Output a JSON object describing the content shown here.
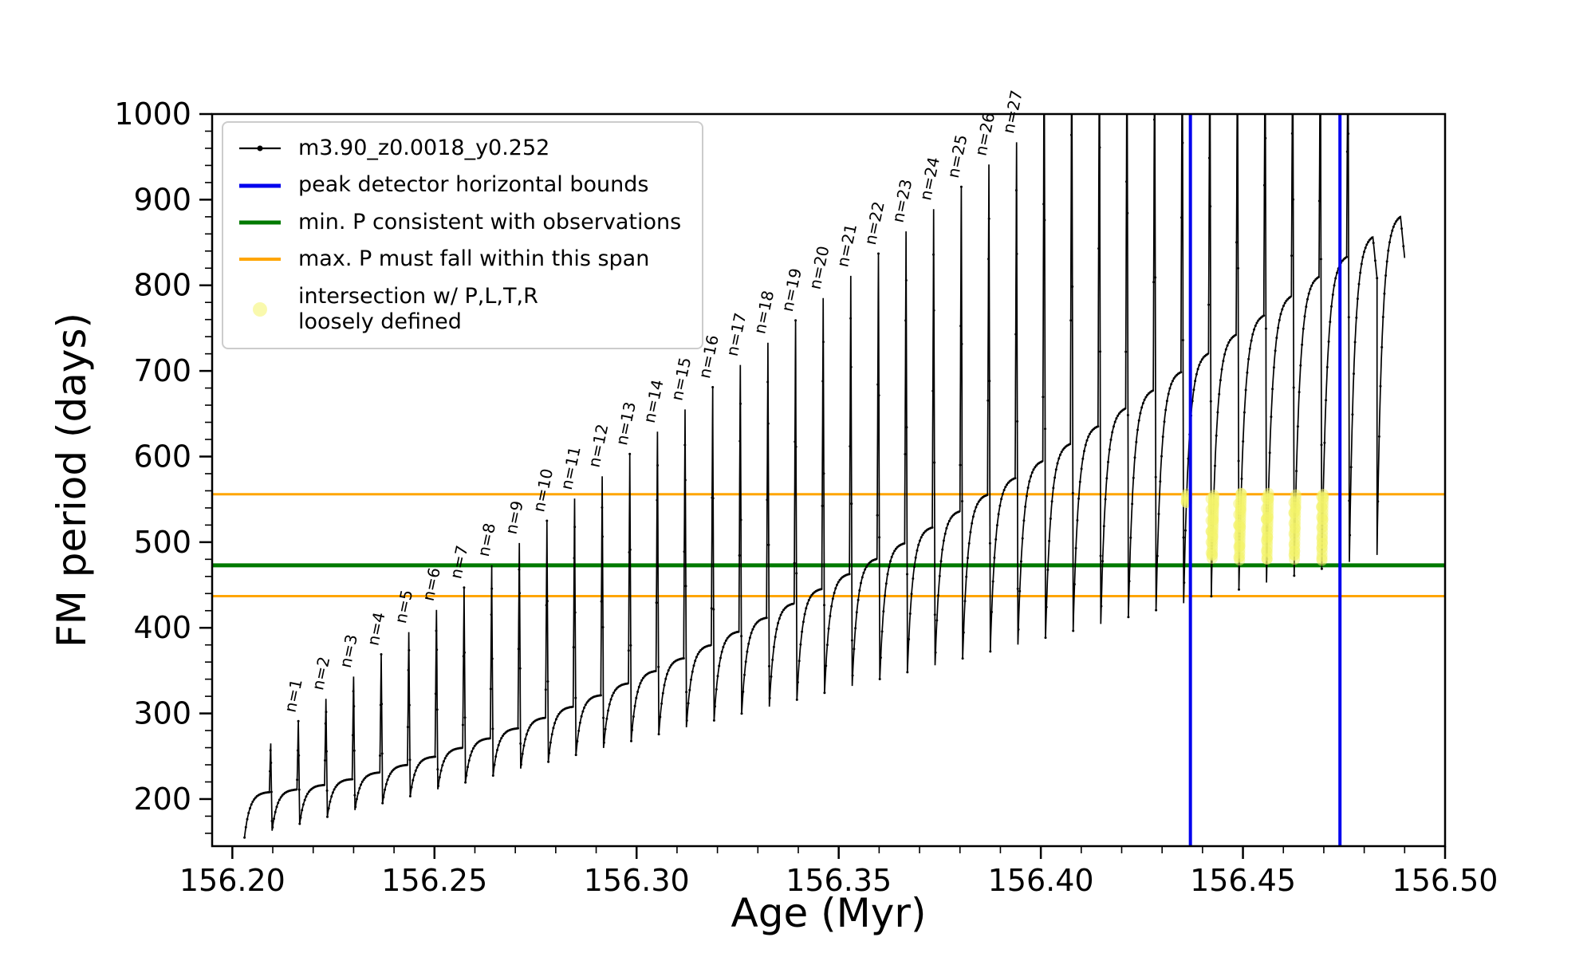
{
  "chart_data": {
    "type": "line",
    "title": "",
    "xlabel": "Age (Myr)",
    "ylabel": "FM period (days)",
    "xlim": [
      156.195,
      156.5
    ],
    "ylim": [
      145,
      1000
    ],
    "grid": false,
    "legend_position": "upper left",
    "x_ticks": {
      "values": [
        156.2,
        156.25,
        156.3,
        156.35,
        156.4,
        156.45,
        156.5
      ],
      "labels": [
        "156.20",
        "156.25",
        "156.30",
        "156.35",
        "156.40",
        "156.45",
        "156.50"
      ],
      "minor_step": 0.01
    },
    "y_ticks": {
      "values": [
        200,
        300,
        400,
        500,
        600,
        700,
        800,
        900,
        1000
      ],
      "labels": [
        "200",
        "300",
        "400",
        "500",
        "600",
        "700",
        "800",
        "900",
        "1000"
      ],
      "minor_step": 20
    },
    "series": {
      "name": "m3.90_z0.0018_y0.252",
      "color": "#000000",
      "marker": "point",
      "peak_label_prefix": "n=",
      "peak_label_count": 27,
      "sawtooth": {
        "age_start": 156.203,
        "age_end": 156.49,
        "n_teeth": 42,
        "low_start": 155,
        "low_end": 485,
        "plateau_start": 208,
        "plateau_end": 880,
        "plateau_power": 1.45,
        "spike_base": 265,
        "spike_step": 26,
        "spike_clipped_height": 1120,
        "last_spiked_tooth": 39
      }
    },
    "reference_lines": [
      {
        "id": "peak-bound-left",
        "orientation": "vertical",
        "x": 156.437,
        "color": "#0000ee",
        "label": "peak detector horizontal bounds"
      },
      {
        "id": "peak-bound-right",
        "orientation": "vertical",
        "x": 156.474,
        "color": "#0000ee",
        "label": "peak detector horizontal bounds"
      },
      {
        "id": "min-p",
        "orientation": "horizontal",
        "y": 473,
        "color": "#007a00",
        "label": "min. P consistent with observations"
      },
      {
        "id": "max-p-lower",
        "orientation": "horizontal",
        "y": 437,
        "color": "#ffa500",
        "label": "max. P must fall within this span"
      },
      {
        "id": "max-p-upper",
        "orientation": "horizontal",
        "y": 556,
        "color": "#ffa500",
        "label": "max. P must fall within this span"
      }
    ],
    "intersection_region": {
      "label": "intersection w/ P,L,T,R\nloosely defined",
      "color": "#f4f46a",
      "x_range": [
        156.436,
        156.4745
      ],
      "y_range": [
        478,
        557
      ]
    }
  },
  "legend": {
    "entries": [
      {
        "label": "m3.90_z0.0018_y0.252",
        "swatch": "black-line-with-dot"
      },
      {
        "label": "peak detector horizontal bounds",
        "swatch": "blue-line"
      },
      {
        "label": "min. P consistent with observations",
        "swatch": "green-line"
      },
      {
        "label": "max. P must fall within this span",
        "swatch": "orange-line"
      },
      {
        "label": "intersection w/ P,L,T,R\nloosely defined",
        "swatch": "yellow-dot"
      }
    ]
  }
}
